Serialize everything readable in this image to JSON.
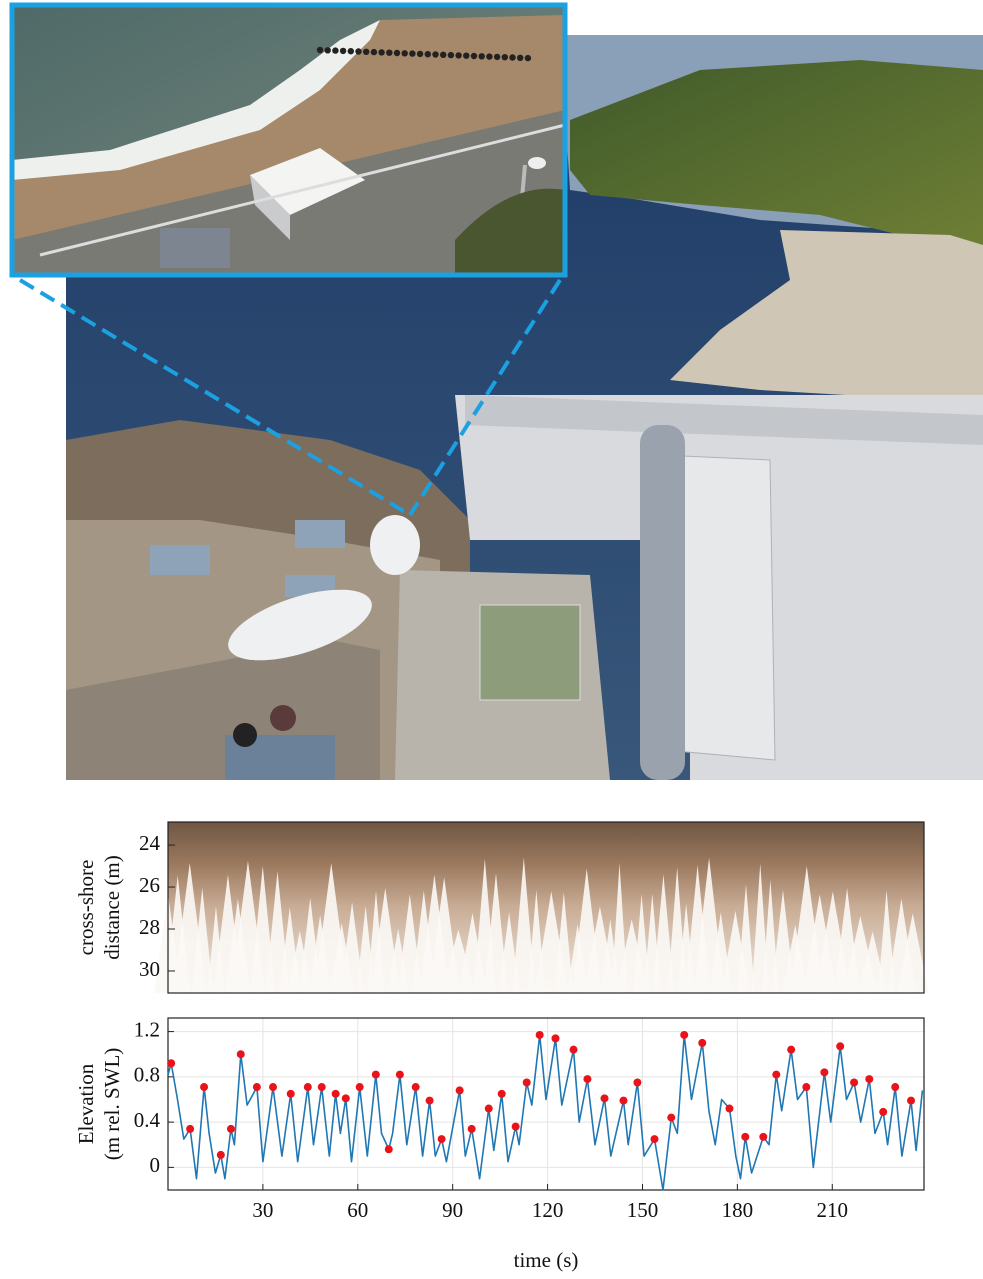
{
  "chart_data": [
    {
      "type": "timestack",
      "ylabel": [
        "cross-shore",
        "distance (m)"
      ],
      "ylim": [
        22.9,
        31.05
      ],
      "invert_y": true,
      "yticks": [
        24,
        26,
        28,
        30
      ]
    },
    {
      "type": "line",
      "ylabel": [
        "Elevation",
        "(m rel. SWL)"
      ],
      "xlabel": "time (s)",
      "xlim": [
        0,
        239
      ],
      "ylim": [
        -0.2,
        1.32
      ],
      "xticks": [
        30,
        60,
        90,
        120,
        150,
        180,
        210
      ],
      "yticks": [
        0,
        0.4,
        0.8,
        1.2
      ],
      "grid": true,
      "series": [
        {
          "color": "#1f77b4",
          "x": [
            0,
            1,
            3,
            5,
            7,
            9,
            11.4,
            13,
            15,
            16.7,
            18,
            19.9,
            21,
            23,
            25,
            26,
            28.1,
            30,
            33.2,
            36,
            38.8,
            41,
            44.2,
            46,
            48.6,
            51,
            53,
            54.5,
            56.2,
            58,
            60.6,
            63,
            65.7,
            67.5,
            69.8,
            71,
            73.3,
            75.5,
            78.3,
            80.5,
            82.7,
            84.5,
            86.5,
            88,
            92.2,
            94,
            96,
            98.5,
            101.4,
            103,
            105.5,
            107.5,
            109.9,
            111,
            113.4,
            115,
            117.5,
            119.5,
            122.5,
            124.5,
            128.2,
            130,
            132.6,
            135,
            138,
            140,
            144,
            145.5,
            148.4,
            150.5,
            153.8,
            156.5,
            159.1,
            161,
            163.2,
            165.5,
            168.9,
            171,
            173,
            175,
            177.5,
            179.5,
            181,
            182.5,
            184.5,
            188.2,
            190,
            192.3,
            194,
            197,
            199,
            201.8,
            204,
            207.5,
            209.5,
            212.5,
            214.5,
            216.9,
            219,
            221.7,
            223.5,
            226.1,
            227.5,
            229.9,
            232,
            234.9,
            236.5,
            238.5
          ],
          "values": [
            0.82,
            0.92,
            0.6,
            0.25,
            0.34,
            -0.1,
            0.71,
            0.3,
            -0.05,
            0.11,
            -0.1,
            0.34,
            0.2,
            1.0,
            0.55,
            0.6,
            0.71,
            0.05,
            0.71,
            0.1,
            0.65,
            0.05,
            0.71,
            0.2,
            0.71,
            0.1,
            0.65,
            0.3,
            0.61,
            0.05,
            0.71,
            0.1,
            0.82,
            0.3,
            0.16,
            0.3,
            0.82,
            0.2,
            0.71,
            0.1,
            0.59,
            0.1,
            0.25,
            0.05,
            0.68,
            0.1,
            0.34,
            -0.1,
            0.52,
            0.15,
            0.65,
            0.05,
            0.36,
            0.2,
            0.75,
            0.55,
            1.17,
            0.6,
            1.14,
            0.55,
            1.04,
            0.4,
            0.78,
            0.2,
            0.61,
            0.1,
            0.59,
            0.2,
            0.75,
            0.1,
            0.25,
            -0.2,
            0.44,
            0.3,
            1.17,
            0.6,
            1.1,
            0.5,
            0.2,
            0.6,
            0.52,
            0.1,
            -0.1,
            0.27,
            -0.05,
            0.27,
            0.2,
            0.82,
            0.5,
            1.04,
            0.6,
            0.71,
            0,
            0.84,
            0.4,
            1.07,
            0.6,
            0.75,
            0.4,
            0.78,
            0.3,
            0.49,
            0.2,
            0.71,
            0.1,
            0.59,
            0.15,
            0.68
          ]
        },
        {
          "color": "#e8141a",
          "marker": "dot",
          "x": [
            1,
            7,
            11.4,
            16.7,
            19.9,
            23,
            28.1,
            33.2,
            38.8,
            44.2,
            48.6,
            53,
            56.2,
            60.6,
            65.7,
            69.8,
            73.3,
            78.3,
            82.7,
            86.5,
            92.2,
            96,
            101.4,
            105.5,
            109.9,
            113.4,
            117.5,
            122.5,
            128.2,
            132.6,
            138,
            144,
            148.4,
            153.8,
            159.1,
            163.2,
            168.9,
            177.5,
            182.5,
            188.2,
            192.3,
            197,
            201.8,
            207.5,
            212.5,
            216.9,
            221.7,
            226.1,
            229.9,
            234.9
          ],
          "values": [
            0.92,
            0.34,
            0.71,
            0.11,
            0.34,
            1.0,
            0.71,
            0.71,
            0.65,
            0.71,
            0.71,
            0.65,
            0.61,
            0.71,
            0.82,
            0.16,
            0.82,
            0.71,
            0.59,
            0.25,
            0.68,
            0.34,
            0.52,
            0.65,
            0.36,
            0.75,
            1.17,
            1.14,
            1.04,
            0.78,
            0.61,
            0.59,
            0.75,
            0.25,
            0.44,
            1.17,
            1.1,
            0.52,
            0.27,
            0.27,
            0.82,
            1.04,
            0.71,
            0.84,
            1.07,
            0.75,
            0.78,
            0.49,
            0.71,
            0.59
          ]
        }
      ]
    }
  ]
}
